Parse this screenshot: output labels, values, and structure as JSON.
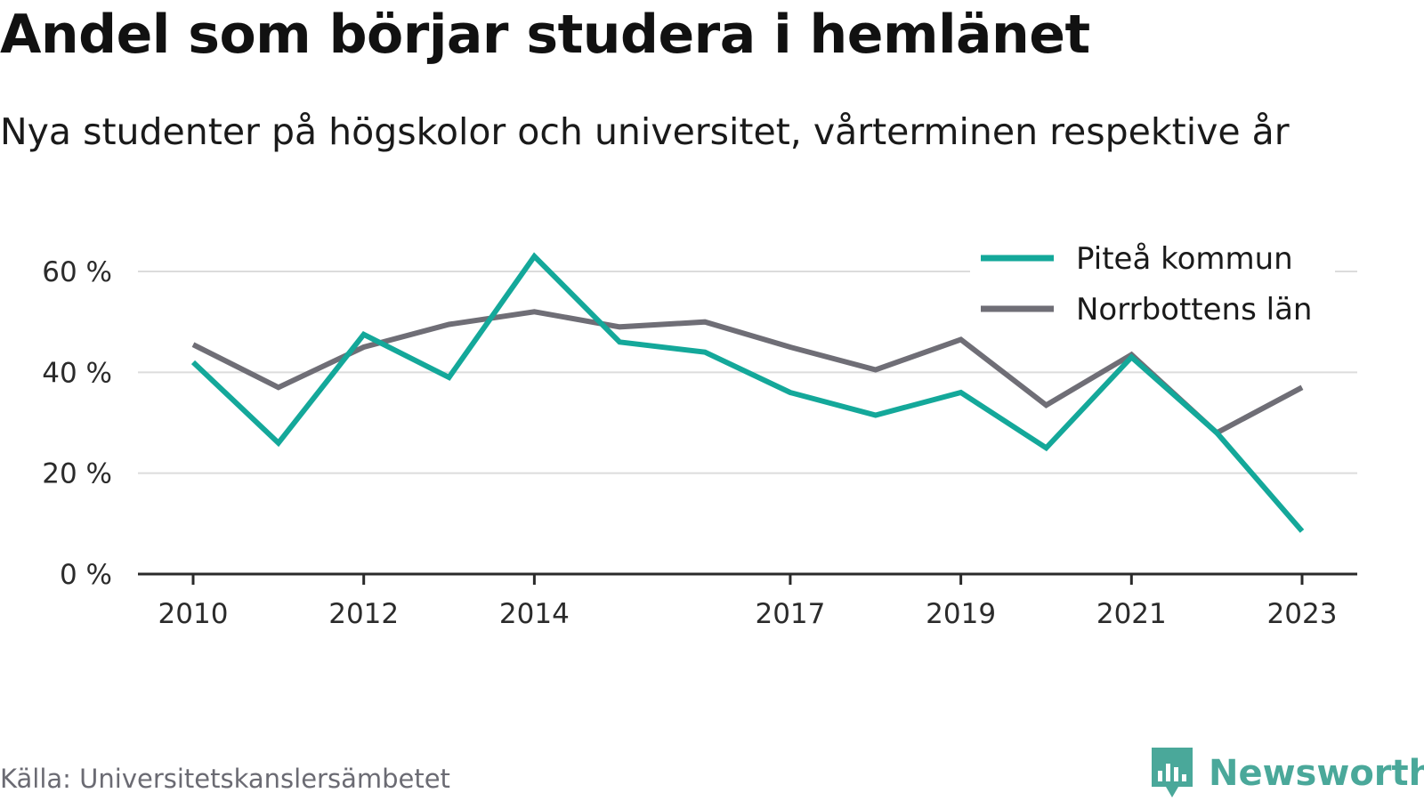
{
  "header": {
    "title": "Andel som börjar studera i hemlänet",
    "subtitle": "Nya studenter på högskolor och universitet, vårterminen respektive år"
  },
  "footer": {
    "source": "Källa: Universitetskanslersämbetet",
    "brand_name": "Newsworthy",
    "brand_color": "#4aa89a",
    "brand_icon": "bar-chart-speech-bubble-icon"
  },
  "chart_data": {
    "type": "line",
    "x": [
      2010,
      2011,
      2012,
      2013,
      2014,
      2015,
      2016,
      2017,
      2018,
      2019,
      2020,
      2021,
      2022,
      2023
    ],
    "x_tick_labels": [
      "2010",
      "2012",
      "2014",
      "2017",
      "2019",
      "2021",
      "2023"
    ],
    "x_tick_values": [
      2010,
      2012,
      2014,
      2017,
      2019,
      2021,
      2023
    ],
    "ylim": [
      0,
      60
    ],
    "y_ticks": [
      0,
      20,
      40,
      60
    ],
    "y_tick_labels": [
      "0 %",
      "20 %",
      "40 %",
      "60 %"
    ],
    "grid": true,
    "legend_position": "top-right",
    "series": [
      {
        "name": "Piteå kommun",
        "color": "#14a89a",
        "values": [
          42,
          26,
          47.5,
          39,
          63,
          46,
          44,
          36,
          31.5,
          36,
          25,
          43,
          28,
          8.5
        ]
      },
      {
        "name": "Norrbottens län",
        "color": "#6f6e76",
        "values": [
          45.5,
          37,
          45,
          49.5,
          52,
          49,
          50,
          45,
          40.5,
          46.5,
          33.5,
          43.5,
          28,
          37
        ]
      }
    ]
  }
}
